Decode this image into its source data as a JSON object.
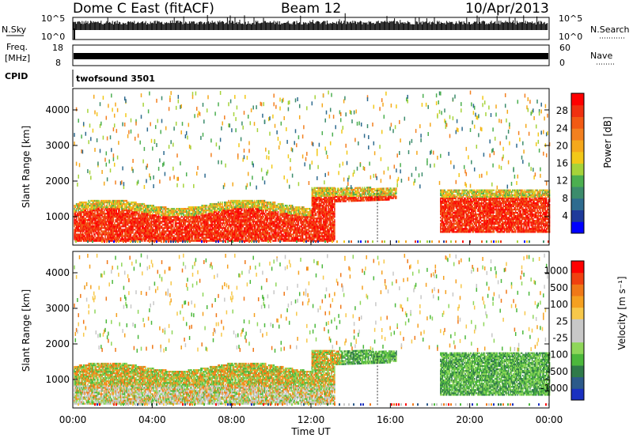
{
  "header": {
    "title": "Dome C East (fitACF)",
    "beam": "Beam 12",
    "date": "10/Apr/2013"
  },
  "strips": {
    "nsky": {
      "label": "N.Sky",
      "ticks_top": "10^5",
      "ticks_bottom": "10^0",
      "right_top": "10^5",
      "right_bottom": "10^0",
      "right_label": "N.Search"
    },
    "freq": {
      "label_1": "Freq.",
      "label_2": "[MHz]",
      "ticks_top": "18",
      "ticks_bottom": "8",
      "right_top": "60",
      "right_bottom": "0",
      "right_label": "Nave"
    },
    "cpid": {
      "label": "CPID",
      "program": "twofsound 3501"
    }
  },
  "colors": {
    "power_scale": [
      "#0000ff",
      "#1e3a9a",
      "#2e6b8f",
      "#3c8c6c",
      "#4caf50",
      "#a6d33a",
      "#f2c818",
      "#f5a81c",
      "#f38020",
      "#f25a14",
      "#f03010",
      "#ff0000"
    ],
    "velocity_scale": [
      "#ff0000",
      "#f04010",
      "#f07818",
      "#f5a020",
      "#f7c84a",
      "#c8c8c8",
      "#c8c8c8",
      "#8fd65a",
      "#4cb83c",
      "#2f7a4a",
      "#2c5a8a",
      "#1a30c0"
    ]
  },
  "chart_data": [
    {
      "type": "heatmap",
      "name": "power",
      "ylabel": "Slant Range [km]",
      "yticks": [
        1000,
        2000,
        3000,
        4000
      ],
      "ylim": [
        200,
        4600
      ],
      "xlim": [
        0,
        24
      ],
      "colorbar": {
        "label": "Power [dB]",
        "ticks": [
          "4",
          "8",
          "12",
          "16",
          "20",
          "24",
          "28"
        ],
        "range": [
          0,
          30
        ]
      }
    },
    {
      "type": "heatmap",
      "name": "velocity",
      "ylabel": "Slant Range [km]",
      "yticks": [
        1000,
        2000,
        3000,
        4000
      ],
      "ylim": [
        200,
        4600
      ],
      "xlim": [
        0,
        24
      ],
      "xlabel": "Time UT",
      "xticks": [
        "00:00",
        "04:00",
        "08:00",
        "12:00",
        "16:00",
        "20:00",
        "00:00"
      ],
      "colorbar": {
        "label": "Velocity [m s⁻¹]",
        "ticks": [
          "1000",
          "500",
          "100",
          "25",
          "-25",
          "-100",
          "-500",
          "-1000"
        ]
      }
    }
  ]
}
